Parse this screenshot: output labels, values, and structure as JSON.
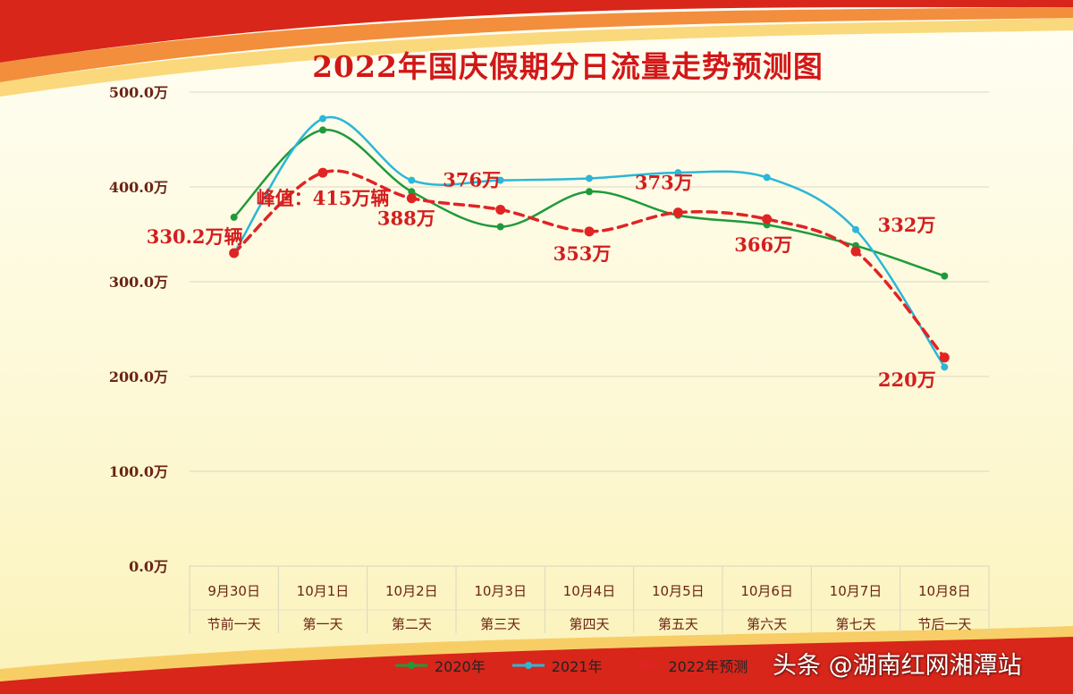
{
  "title": "2022年国庆假期分日流量走势预测图",
  "watermark": "头条 @湖南红网湘潭站",
  "chart_data": {
    "type": "line",
    "ylim": [
      0,
      500
    ],
    "y_ticks": [
      0,
      100,
      200,
      300,
      400,
      500
    ],
    "y_tick_labels": [
      "0.0万",
      "100.0万",
      "200.0万",
      "300.0万",
      "400.0万",
      "500.0万"
    ],
    "categories": [
      "9月30日",
      "10月1日",
      "10月2日",
      "10月3日",
      "10月4日",
      "10月5日",
      "10月6日",
      "10月7日",
      "10月8日"
    ],
    "categories_sub": [
      "节前一天",
      "第一天",
      "第二天",
      "第三天",
      "第四天",
      "第五天",
      "第六天",
      "第七天",
      "节后一天"
    ],
    "grid": true,
    "legend_position": "bottom",
    "series": [
      {
        "name": "2020年",
        "color": "#1f9a3a",
        "style": "solid",
        "values": [
          368,
          460,
          395,
          358,
          395,
          370,
          360,
          338,
          306
        ]
      },
      {
        "name": "2021年",
        "color": "#2ab7d8",
        "style": "solid",
        "values": [
          330,
          472,
          407,
          407,
          409,
          415,
          410,
          355,
          210
        ]
      },
      {
        "name": "2022年预测",
        "color": "#e02424",
        "style": "dashed",
        "values": [
          330.2,
          415,
          388,
          376,
          353,
          373,
          366,
          332,
          220
        ]
      }
    ],
    "annotations": [
      {
        "text": "峰值：415万辆",
        "index": 1
      },
      {
        "text": "330.2万辆",
        "index": 0
      },
      {
        "text": "388万",
        "index": 2
      },
      {
        "text": "376万",
        "index": 3
      },
      {
        "text": "353万",
        "index": 4
      },
      {
        "text": "373万",
        "index": 5
      },
      {
        "text": "366万",
        "index": 6
      },
      {
        "text": "332万",
        "index": 7
      },
      {
        "text": "220万",
        "index": 8
      }
    ]
  }
}
